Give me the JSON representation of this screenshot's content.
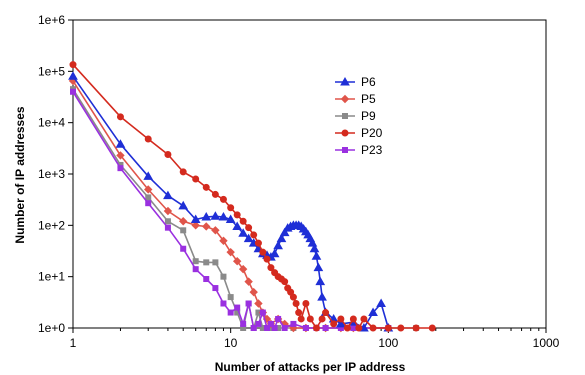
{
  "chart_data": {
    "type": "line",
    "title": "",
    "xlabel": "Number of attacks per IP address",
    "ylabel": "Number of IP addresses",
    "xscale": "log",
    "yscale": "log",
    "xlim": [
      1,
      1000
    ],
    "ylim": [
      1,
      1000000
    ],
    "x_tick_labels": [
      "1",
      "10",
      "100",
      "1000"
    ],
    "y_tick_labels": [
      "1e+0",
      "1e+1",
      "1e+2",
      "1e+3",
      "1e+4",
      "1e+5",
      "1e+6"
    ],
    "grid": false,
    "legend_position": "center-right",
    "series": [
      {
        "name": "P6",
        "color": "#1f2fd6",
        "marker": "triangle",
        "points": [
          [
            1,
            80000
          ],
          [
            2,
            3800
          ],
          [
            3,
            900
          ],
          [
            4,
            380
          ],
          [
            5,
            240
          ],
          [
            6,
            130
          ],
          [
            7,
            145
          ],
          [
            8,
            150
          ],
          [
            9,
            145
          ],
          [
            10,
            130
          ],
          [
            11,
            95
          ],
          [
            12,
            70
          ],
          [
            13,
            55
          ],
          [
            14,
            45
          ],
          [
            15,
            35
          ],
          [
            16,
            28
          ],
          [
            17,
            26
          ],
          [
            18,
            24
          ],
          [
            19,
            28
          ],
          [
            20,
            40
          ],
          [
            21,
            55
          ],
          [
            22,
            72
          ],
          [
            23,
            88
          ],
          [
            24,
            95
          ],
          [
            25,
            100
          ],
          [
            26,
            100
          ],
          [
            27,
            100
          ],
          [
            28,
            95
          ],
          [
            29,
            85
          ],
          [
            30,
            75
          ],
          [
            31,
            65
          ],
          [
            32,
            55
          ],
          [
            33,
            45
          ],
          [
            34,
            35
          ],
          [
            35,
            25
          ],
          [
            36,
            15
          ],
          [
            37,
            8
          ],
          [
            38,
            4
          ],
          [
            40,
            2
          ],
          [
            45,
            1.5
          ],
          [
            50,
            1.2
          ],
          [
            60,
            1.3
          ],
          [
            70,
            1
          ],
          [
            80,
            2
          ],
          [
            90,
            3
          ],
          [
            100,
            1
          ]
        ]
      },
      {
        "name": "P5",
        "color": "#e0554a",
        "marker": "diamond",
        "points": [
          [
            1,
            65000
          ],
          [
            2,
            2300
          ],
          [
            3,
            500
          ],
          [
            4,
            190
          ],
          [
            5,
            120
          ],
          [
            6,
            100
          ],
          [
            7,
            95
          ],
          [
            8,
            80
          ],
          [
            9,
            50
          ],
          [
            10,
            30
          ],
          [
            11,
            20
          ],
          [
            12,
            14
          ],
          [
            13,
            8
          ],
          [
            14,
            5
          ],
          [
            15,
            3
          ],
          [
            16,
            2
          ],
          [
            17,
            1.5
          ],
          [
            18,
            1.2
          ],
          [
            20,
            1.5
          ],
          [
            22,
            1.2
          ],
          [
            25,
            1
          ],
          [
            30,
            1
          ],
          [
            40,
            1
          ],
          [
            50,
            1
          ],
          [
            60,
            1
          ],
          [
            100,
            1
          ]
        ]
      },
      {
        "name": "P9",
        "color": "#8a8a8a",
        "marker": "square",
        "points": [
          [
            1,
            45000
          ],
          [
            2,
            1500
          ],
          [
            3,
            350
          ],
          [
            4,
            120
          ],
          [
            5,
            80
          ],
          [
            6,
            20
          ],
          [
            7,
            19
          ],
          [
            8,
            19
          ],
          [
            9,
            10
          ],
          [
            10,
            4
          ],
          [
            11,
            2
          ],
          [
            12,
            1
          ],
          [
            13,
            3
          ],
          [
            14,
            1
          ],
          [
            15,
            2
          ],
          [
            16,
            1
          ],
          [
            17,
            1
          ],
          [
            18,
            1
          ],
          [
            20,
            1
          ],
          [
            25,
            1
          ],
          [
            30,
            1
          ],
          [
            40,
            1
          ],
          [
            60,
            1
          ],
          [
            100,
            1
          ],
          [
            150,
            1
          ]
        ]
      },
      {
        "name": "P20",
        "color": "#d42a1e",
        "marker": "circle",
        "points": [
          [
            1,
            135000
          ],
          [
            2,
            13000
          ],
          [
            3,
            4800
          ],
          [
            4,
            2400
          ],
          [
            5,
            1100
          ],
          [
            6,
            800
          ],
          [
            7,
            550
          ],
          [
            8,
            400
          ],
          [
            9,
            320
          ],
          [
            10,
            220
          ],
          [
            11,
            160
          ],
          [
            12,
            120
          ],
          [
            13,
            90
          ],
          [
            14,
            65
          ],
          [
            15,
            45
          ],
          [
            16,
            30
          ],
          [
            17,
            22
          ],
          [
            18,
            15
          ],
          [
            19,
            12
          ],
          [
            20,
            10
          ],
          [
            21,
            9
          ],
          [
            22,
            8
          ],
          [
            23,
            6
          ],
          [
            24,
            5
          ],
          [
            25,
            4
          ],
          [
            26,
            3
          ],
          [
            27,
            2
          ],
          [
            28,
            1.5
          ],
          [
            30,
            3
          ],
          [
            32,
            1.5
          ],
          [
            35,
            1
          ],
          [
            38,
            1.5
          ],
          [
            40,
            2
          ],
          [
            45,
            1.2
          ],
          [
            50,
            1.5
          ],
          [
            55,
            1
          ],
          [
            60,
            1.5
          ],
          [
            65,
            1
          ],
          [
            70,
            1.5
          ],
          [
            80,
            1
          ],
          [
            100,
            1
          ],
          [
            120,
            1
          ],
          [
            150,
            1
          ],
          [
            190,
            1
          ]
        ]
      },
      {
        "name": "P23",
        "color": "#9a30e0",
        "marker": "square",
        "points": [
          [
            1,
            40000
          ],
          [
            2,
            1300
          ],
          [
            3,
            270
          ],
          [
            4,
            90
          ],
          [
            5,
            35
          ],
          [
            6,
            14
          ],
          [
            7,
            9
          ],
          [
            8,
            6
          ],
          [
            9,
            3
          ],
          [
            10,
            2
          ],
          [
            11,
            2.5
          ],
          [
            12,
            1.2
          ],
          [
            13,
            3
          ],
          [
            14,
            1
          ],
          [
            15,
            1.2
          ],
          [
            16,
            2
          ],
          [
            17,
            1
          ],
          [
            18,
            1.2
          ],
          [
            19,
            1
          ],
          [
            20,
            1.5
          ],
          [
            22,
            1
          ],
          [
            25,
            1.2
          ],
          [
            30,
            1
          ],
          [
            35,
            1
          ],
          [
            40,
            1
          ],
          [
            50,
            1
          ],
          [
            60,
            1
          ],
          [
            100,
            1
          ]
        ]
      }
    ]
  }
}
